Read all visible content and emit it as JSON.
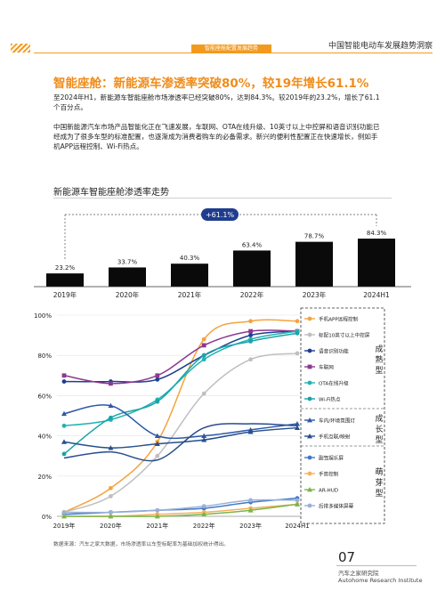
{
  "header": {
    "tag": "智能座舱配置发展趋势",
    "title": "中国智能电动车发展趋势洞察"
  },
  "main_title": "智能座舱：新能源车渗透率突破80%，较19年增长61.1%",
  "para1": "至2024年H1，新能源车智能座舱市场渗透率已经突破80%，达到84.3%。较2019年的23.2%，增长了61.1个百分点。",
  "para2": "中国新能源汽车市场产品智能化正在飞速发展，车联网、OTA在线升级、10英寸以上中控屏和语音识别功能已经成为了很多车型的标准配置，也逐渐成为消费者购车的必备需求。新兴的便利性配置正在快速增长，例如手机APP远程控制、Wi-Fi热点。",
  "section_title": "新能源车智能座舱渗透率走势",
  "chart_data": [
    {
      "type": "bar",
      "categories": [
        "2019年",
        "2020年",
        "2021年",
        "2022年",
        "2023年",
        "2024H1"
      ],
      "values": [
        23.2,
        33.7,
        40.3,
        63.4,
        78.7,
        84.3
      ],
      "labels": [
        "23.2%",
        "33.7%",
        "40.3%",
        "63.4%",
        "78.7%",
        "84.3%"
      ],
      "annotation": "+61.1%",
      "color": "#0a0a0a"
    },
    {
      "type": "line",
      "x": [
        "2019年",
        "2020年",
        "2021年",
        "2022年",
        "2023年",
        "2024H1"
      ],
      "ylim": [
        0,
        100
      ],
      "yticks": [
        "0%",
        "20%",
        "40%",
        "60%",
        "80%",
        "100%"
      ],
      "series": [
        {
          "name": "手机APP远程控制",
          "color": "#f4a340",
          "marker": "circle",
          "values": [
            2,
            14,
            37,
            88,
            97,
            97
          ]
        },
        {
          "name": "标配10英寸以上中控屏",
          "color": "#bfbfbf",
          "marker": "circle",
          "values": [
            2,
            10,
            30,
            61,
            78,
            81
          ]
        },
        {
          "name": "语音识别功能",
          "color": "#1f3d8f",
          "marker": "circle",
          "values": [
            67,
            67,
            68,
            80,
            90,
            92
          ]
        },
        {
          "name": "车联网",
          "color": "#8b3a8f",
          "marker": "square",
          "values": [
            70,
            66,
            70,
            85,
            92,
            92
          ]
        },
        {
          "name": "OTA在线升级",
          "color": "#21b3b0",
          "marker": "circle",
          "values": [
            45,
            48,
            58,
            78,
            88,
            92
          ]
        },
        {
          "name": "Wi-Fi热点",
          "color": "#1aa3a8",
          "marker": "circle",
          "values": [
            31,
            49,
            57,
            80,
            87,
            91
          ]
        },
        {
          "name": "车内/环境氛围灯",
          "color": "#2d58a8",
          "marker": "triangle-up",
          "values": [
            51,
            55,
            40,
            40,
            43,
            46
          ]
        },
        {
          "name": "手机互联/映射",
          "color": "#264f8c",
          "marker": "triangle-up",
          "values": [
            37,
            34,
            36,
            38,
            42,
            44
          ]
        },
        {
          "name": "副驾娱乐屏",
          "color": "#3f79c8",
          "marker": "circle",
          "values": [
            1,
            2,
            3,
            4,
            7,
            9
          ]
        },
        {
          "name": "手势控制",
          "color": "#f5b15c",
          "marker": "circle",
          "values": [
            0,
            0,
            1,
            2,
            4,
            6
          ]
        },
        {
          "name": "AR-HUD",
          "color": "#7ab648",
          "marker": "triangle-up",
          "values": [
            0,
            0,
            0,
            1,
            3,
            6
          ]
        },
        {
          "name": "后排多媒体屏幕",
          "color": "#9ab0d8",
          "marker": "circle",
          "values": [
            2,
            2,
            3,
            5,
            8,
            8
          ]
        },
        {
          "name": "",
          "color": "#2a4d8c",
          "marker": "line",
          "values": [
            29,
            32,
            28,
            44,
            46,
            45
          ]
        }
      ],
      "legend_groups": [
        {
          "label": "成熟型",
          "items": [
            "手机APP远程控制",
            "标配10英寸以上中控屏",
            "语音识别功能",
            "车联网",
            "OTA在线升级",
            "Wi-Fi热点"
          ]
        },
        {
          "label": "成长型",
          "items": [
            "车内/环境氛围灯",
            "手机互联/映射"
          ]
        },
        {
          "label": "萌芽型",
          "items": [
            "副驾娱乐屏",
            "手势控制",
            "AR-HUD",
            "后排多媒体屏幕"
          ]
        }
      ],
      "legend_position": "right"
    }
  ],
  "source_note": "数据来源：汽车之家大数据，市场渗透率以车型标配率为基础加权统计得出。",
  "footer": {
    "page_number": "07",
    "org_cn": "汽车之家研究院",
    "org_en": "Autohome Research Institute"
  }
}
